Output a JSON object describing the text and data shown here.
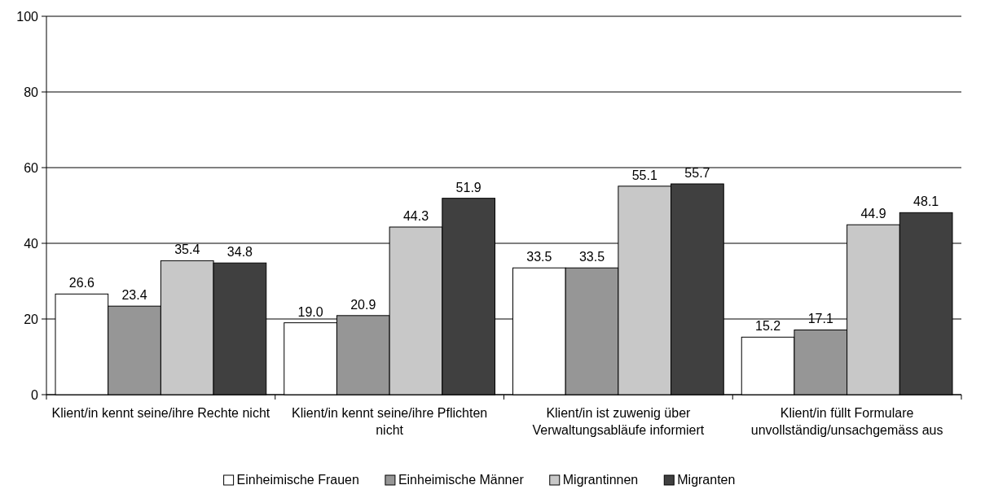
{
  "chart_data": {
    "type": "bar",
    "categories": [
      "Klient/in kennt seine/ihre Rechte nicht",
      "Klient/in kennt seine/ihre Pflichten nicht",
      "Klient/in ist zuwenig über Verwaltungsabläufe informiert",
      "Klient/in füllt Formulare unvollständig/unsachgemäss aus"
    ],
    "series": [
      {
        "name": "Einheimische Frauen",
        "color": "#ffffff",
        "values": [
          26.6,
          19.0,
          33.5,
          15.2
        ],
        "value_labels": [
          "26.6",
          "19.0",
          "33.5",
          "15.2"
        ]
      },
      {
        "name": "Einheimische Männer",
        "color": "#969696",
        "values": [
          23.4,
          20.9,
          33.5,
          17.1
        ],
        "value_labels": [
          "23.4",
          "20.9",
          "33.5",
          "17.1"
        ]
      },
      {
        "name": "Migrantinnen",
        "color": "#c8c8c8",
        "values": [
          35.4,
          44.3,
          55.1,
          44.9
        ],
        "value_labels": [
          "35.4",
          "44.3",
          "55.1",
          "44.9"
        ]
      },
      {
        "name": "Migranten",
        "color": "#404040",
        "values": [
          34.8,
          51.9,
          55.7,
          48.1
        ],
        "value_labels": [
          "34.8",
          "51.9",
          "55.7",
          "48.1"
        ]
      }
    ],
    "ylim": [
      0,
      100
    ],
    "yticks": [
      0,
      20,
      40,
      60,
      80,
      100
    ],
    "grid": "y",
    "legend": "bottom"
  }
}
